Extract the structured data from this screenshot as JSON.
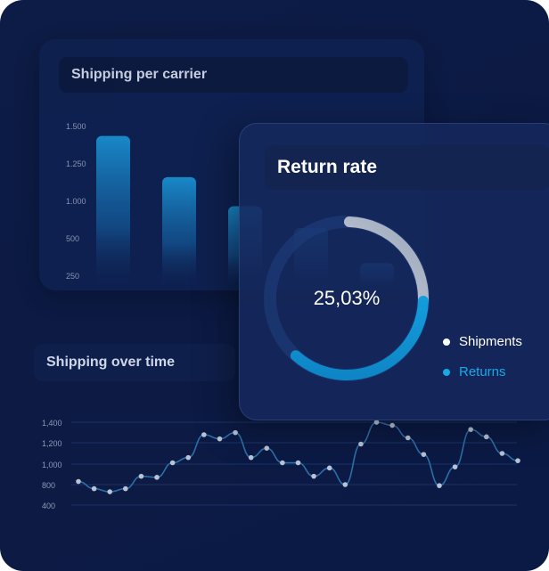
{
  "colors": {
    "background": "#0c1a44",
    "bar": "#1a8fd0",
    "returns": "#16a9e6",
    "shipments": "#d9dee8",
    "line": "#2d6fa8",
    "point": "#b8c4d6"
  },
  "bar_card": {
    "title": "Shipping per carrier"
  },
  "return_card": {
    "title": "Return rate",
    "center_value": "25,03%",
    "legend": [
      {
        "label": "Shipments",
        "color": "#ffffff"
      },
      {
        "label": "Returns",
        "color": "#16a9e6"
      }
    ]
  },
  "line_card": {
    "title": "Shipping over time"
  },
  "chart_data": [
    {
      "type": "bar",
      "title": "Shipping per carrier",
      "y_ticks": [
        "1.500",
        "1.250",
        "1.000",
        "500",
        "250"
      ],
      "values": [
        1400,
        1060,
        820,
        640,
        350
      ],
      "ylim": [
        250,
        1500
      ],
      "grid": false
    },
    {
      "type": "pie",
      "title": "Return rate",
      "labels": [
        "Shipments",
        "Returns"
      ],
      "values": [
        74.97,
        25.03
      ],
      "center_label": "25,03%"
    },
    {
      "type": "line",
      "title": "Shipping over time",
      "y_ticks": [
        "1,400",
        "1,200",
        "1,000",
        "800",
        "400"
      ],
      "values": [
        830,
        720,
        660,
        720,
        880,
        870,
        1010,
        1060,
        1280,
        1240,
        1300,
        1060,
        1150,
        1010,
        1010,
        880,
        960,
        800,
        1190,
        1400,
        1370,
        1250,
        1090,
        780,
        970,
        1330,
        1260,
        1100,
        1030
      ],
      "grid": true
    }
  ]
}
